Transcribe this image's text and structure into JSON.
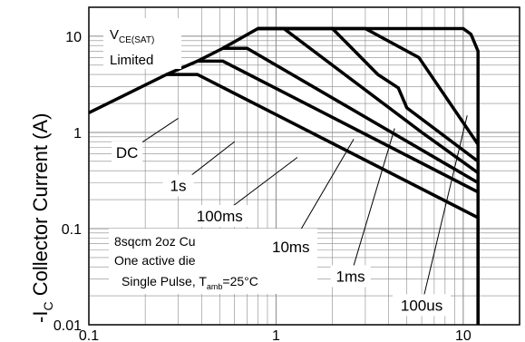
{
  "chart_data": {
    "type": "line",
    "title": "",
    "xscale": "log",
    "yscale": "log",
    "xlim": [
      0.1,
      20
    ],
    "ylim": [
      0.01,
      20
    ],
    "grid": true,
    "ylabel": {
      "main": "-I",
      "sub": "C",
      "rest": " Collector Current (A)"
    },
    "x_ticks": [
      {
        "value": 0.1,
        "label": "0.1"
      },
      {
        "value": 1,
        "label": "1"
      },
      {
        "value": 10,
        "label": "10"
      }
    ],
    "y_ticks": [
      {
        "value": 0.01,
        "label": "0.01"
      },
      {
        "value": 0.1,
        "label": "0.1"
      },
      {
        "value": 1,
        "label": "1"
      },
      {
        "value": 10,
        "label": "10"
      }
    ],
    "series": [
      {
        "name": "DC",
        "points": [
          [
            0.1,
            1.6
          ],
          [
            0.26,
            4.0
          ],
          [
            0.38,
            4.0
          ],
          [
            12,
            0.13
          ],
          [
            12,
            0.01
          ]
        ]
      },
      {
        "name": "1s",
        "points": [
          [
            0.26,
            4.0
          ],
          [
            0.38,
            5.5
          ],
          [
            0.52,
            5.5
          ],
          [
            12,
            0.24
          ]
        ]
      },
      {
        "name": "100ms",
        "points": [
          [
            0.38,
            5.5
          ],
          [
            0.52,
            7.5
          ],
          [
            0.7,
            7.5
          ],
          [
            12,
            0.3
          ]
        ]
      },
      {
        "name": "10ms",
        "points": [
          [
            0.52,
            7.5
          ],
          [
            0.8,
            12
          ],
          [
            1.1,
            12
          ],
          [
            6,
            1.0
          ],
          [
            12,
            0.38
          ]
        ]
      },
      {
        "name": "1ms",
        "points": [
          [
            0.8,
            12
          ],
          [
            2.0,
            12
          ],
          [
            3.5,
            4.0
          ],
          [
            4.5,
            2.9
          ],
          [
            5.0,
            1.8
          ],
          [
            12,
            0.5
          ]
        ]
      },
      {
        "name": "100us",
        "points": [
          [
            0.8,
            12
          ],
          [
            3.0,
            12
          ],
          [
            5.8,
            6.0
          ],
          [
            12,
            0.75
          ]
        ]
      },
      {
        "name": "",
        "points": [
          [
            0.8,
            12
          ],
          [
            10,
            12
          ],
          [
            11,
            10.5
          ],
          [
            12,
            7.0
          ],
          [
            12,
            0.01
          ]
        ]
      }
    ],
    "curve_labels": [
      {
        "text": "DC",
        "box": [
          0.16,
          0.62
        ],
        "leader_to": [
          0.3,
          1.4
        ]
      },
      {
        "text": "1s",
        "box": [
          0.3,
          0.28
        ],
        "leader_to": [
          0.6,
          0.8
        ]
      },
      {
        "text": "100ms",
        "box": [
          0.5,
          0.135
        ],
        "leader_to": [
          1.3,
          0.55
        ]
      },
      {
        "text": "10ms",
        "box": [
          1.2,
          0.065
        ],
        "leader_to": [
          2.6,
          0.85
        ]
      },
      {
        "text": "1ms",
        "box": [
          2.5,
          0.032
        ],
        "leader_to": [
          4.3,
          1.1
        ]
      },
      {
        "text": "100us",
        "box": [
          6.0,
          0.016
        ],
        "leader_to": [
          10.5,
          1.5
        ]
      }
    ],
    "annotations": {
      "vce_main": "V",
      "vce_sub": "CE(SAT)",
      "limited": "Limited",
      "box_line1": "8sqcm 2oz Cu",
      "box_line2": "One active die",
      "box_line3_main": "Single Pulse, T",
      "box_line3_sub": "amb",
      "box_line3_rest": "=25°C"
    }
  }
}
